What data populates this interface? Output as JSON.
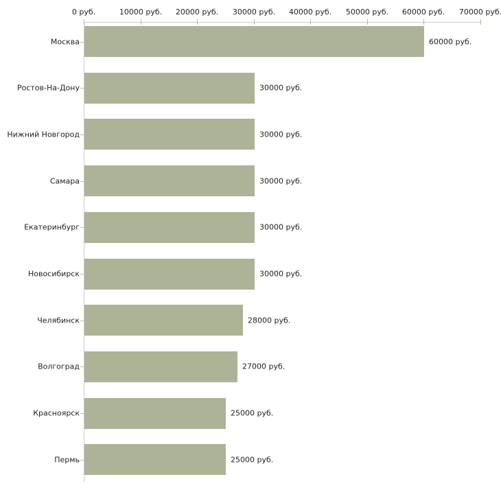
{
  "chart_data": {
    "type": "bar",
    "orientation": "horizontal",
    "title": "",
    "xlabel": "",
    "ylabel": "",
    "xlim": [
      0,
      70000
    ],
    "axis_position": "top",
    "grid": false,
    "legend": false,
    "categories": [
      "Москва",
      "Ростов-На-Дону",
      "Нижний Новгород",
      "Самара",
      "Екатеринбург",
      "Новосибирск",
      "Челябинск",
      "Волгоград",
      "Красноярск",
      "Пермь"
    ],
    "values": [
      60000,
      30000,
      30000,
      30000,
      30000,
      30000,
      28000,
      27000,
      25000,
      25000
    ],
    "value_labels": [
      "60000 руб.",
      "30000 руб.",
      "30000 руб.",
      "30000 руб.",
      "30000 руб.",
      "30000 руб.",
      "28000 руб.",
      "27000 руб.",
      "25000 руб.",
      "25000 руб."
    ],
    "x_tick_values": [
      0,
      10000,
      20000,
      30000,
      40000,
      50000,
      60000,
      70000
    ],
    "x_tick_labels": [
      "0 руб.",
      "10000 руб.",
      "20000 руб.",
      "30000 руб.",
      "40000 руб.",
      "50000 руб.",
      "60000 руб.",
      "70000 руб."
    ],
    "colors": {
      "bar_fill": "#adb396",
      "axis_line": "#cccccc",
      "tick_mark": "#b8b48b",
      "category_tick": "#c2bf9c",
      "text": "#222222",
      "background": "#ffffff"
    }
  }
}
